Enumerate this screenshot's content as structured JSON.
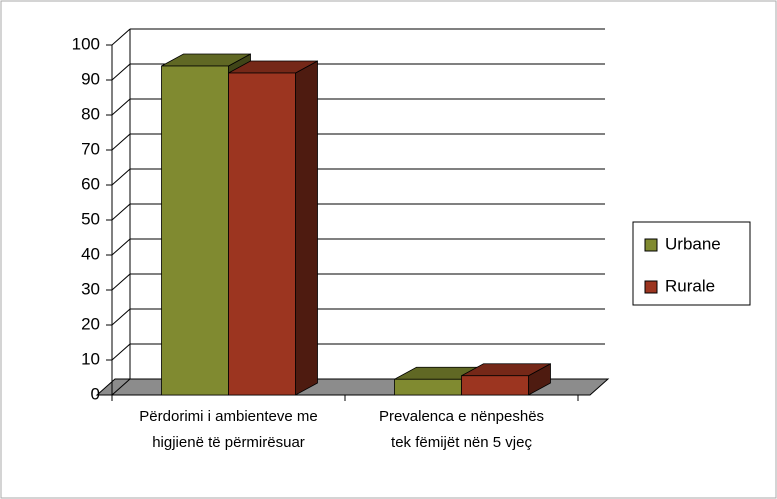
{
  "chart_data": {
    "type": "bar3d",
    "categories": [
      "Përdorimi i ambienteve me higjienë të përmirësuar",
      "Prevalenca e nënpeshës tek fëmijët nën 5 vjeç"
    ],
    "series": [
      {
        "name": "Urbane",
        "color": "#808a30",
        "values": [
          94,
          4.5
        ]
      },
      {
        "name": "Rurale",
        "color": "#9c3520",
        "values": [
          92,
          5.5
        ]
      }
    ],
    "ylim": [
      0,
      100
    ],
    "yticks": [
      0,
      10,
      20,
      30,
      40,
      50,
      60,
      70,
      80,
      90,
      100
    ],
    "grid": true,
    "legend": "right"
  }
}
